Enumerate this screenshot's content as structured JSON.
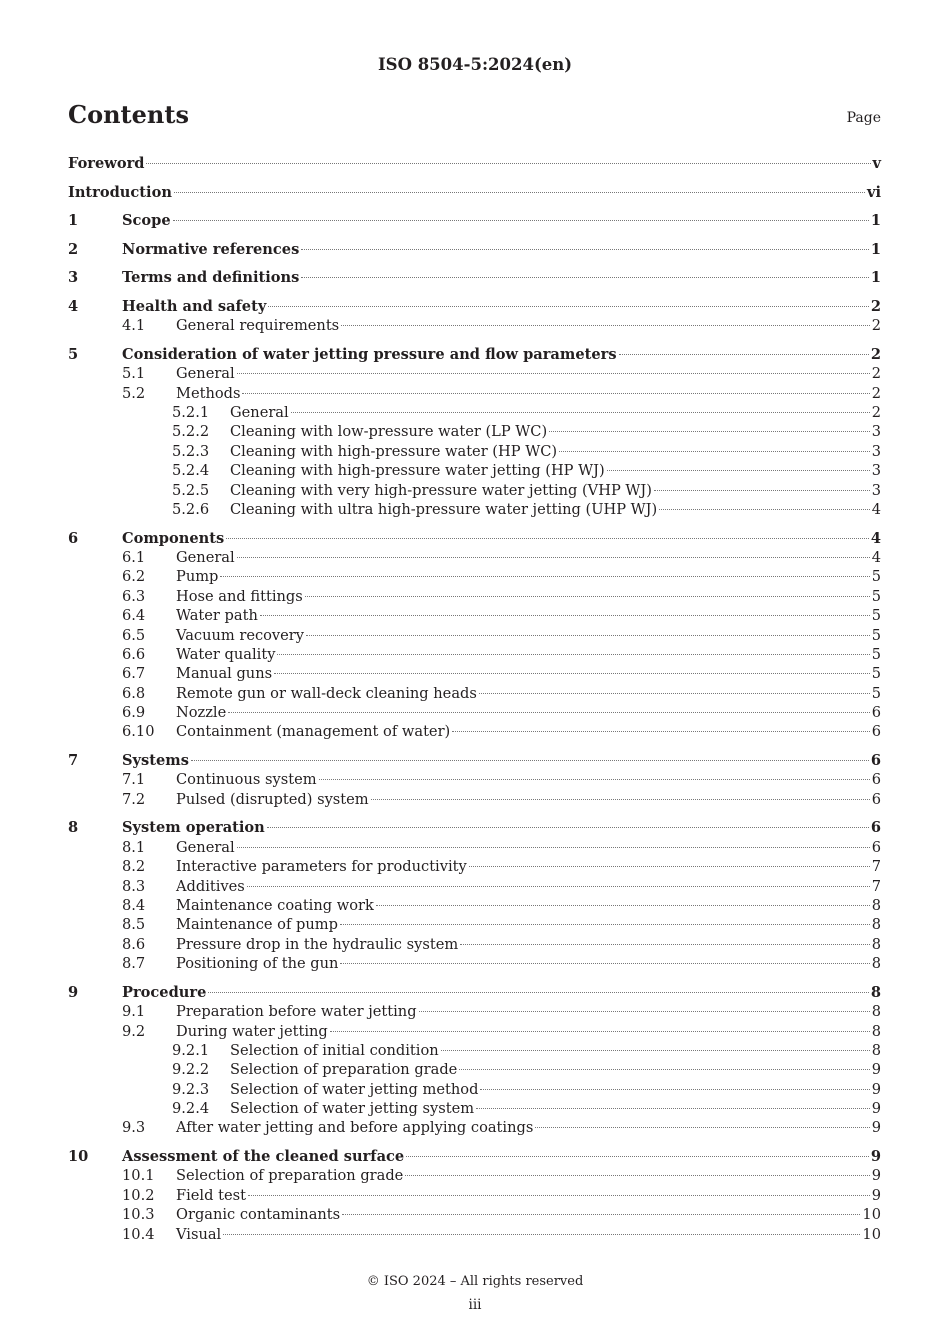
{
  "header": {
    "doc_id": "ISO 8504-5:2024(en)"
  },
  "contents": {
    "title": "Contents",
    "page_label": "Page"
  },
  "entries": [
    {
      "level": 0,
      "num": "",
      "title": "Foreword",
      "page": "v"
    },
    {
      "level": 0,
      "num": "",
      "title": "Introduction",
      "page": "vi"
    },
    {
      "level": 1,
      "num": "1",
      "title": "Scope",
      "page": "1"
    },
    {
      "level": 1,
      "num": "2",
      "title": "Normative references",
      "page": "1"
    },
    {
      "level": 1,
      "num": "3",
      "title": "Terms and definitions",
      "page": "1"
    },
    {
      "level": 1,
      "num": "4",
      "title": "Health and safety",
      "page": "2"
    },
    {
      "level": 2,
      "num": "4.1",
      "title": "General requirements",
      "page": "2"
    },
    {
      "level": 1,
      "num": "5",
      "title": "Consideration of water jetting pressure and flow parameters",
      "page": "2"
    },
    {
      "level": 2,
      "num": "5.1",
      "title": "General",
      "page": "2"
    },
    {
      "level": 2,
      "num": "5.2",
      "title": "Methods",
      "page": "2"
    },
    {
      "level": 3,
      "num": "5.2.1",
      "title": "General",
      "page": "2"
    },
    {
      "level": 3,
      "num": "5.2.2",
      "title": "Cleaning with low-pressure water (LP WC)",
      "page": "3"
    },
    {
      "level": 3,
      "num": "5.2.3",
      "title": "Cleaning with high-pressure water (HP WC)",
      "page": "3"
    },
    {
      "level": 3,
      "num": "5.2.4",
      "title": "Cleaning with high-pressure water jetting (HP WJ)",
      "page": "3"
    },
    {
      "level": 3,
      "num": "5.2.5",
      "title": "Cleaning with very high-pressure water jetting (VHP WJ)",
      "page": "3"
    },
    {
      "level": 3,
      "num": "5.2.6",
      "title": "Cleaning with ultra high-pressure water jetting (UHP WJ)",
      "page": "4"
    },
    {
      "level": 1,
      "num": "6",
      "title": "Components",
      "page": "4"
    },
    {
      "level": 2,
      "num": "6.1",
      "title": "General",
      "page": "4"
    },
    {
      "level": 2,
      "num": "6.2",
      "title": "Pump",
      "page": "5"
    },
    {
      "level": 2,
      "num": "6.3",
      "title": "Hose and fittings",
      "page": "5"
    },
    {
      "level": 2,
      "num": "6.4",
      "title": "Water path",
      "page": "5"
    },
    {
      "level": 2,
      "num": "6.5",
      "title": "Vacuum recovery",
      "page": "5"
    },
    {
      "level": 2,
      "num": "6.6",
      "title": "Water quality",
      "page": "5"
    },
    {
      "level": 2,
      "num": "6.7",
      "title": "Manual guns",
      "page": "5"
    },
    {
      "level": 2,
      "num": "6.8",
      "title": "Remote gun or wall-deck cleaning heads",
      "page": "5"
    },
    {
      "level": 2,
      "num": "6.9",
      "title": "Nozzle",
      "page": "6"
    },
    {
      "level": 2,
      "num": "6.10",
      "title": "Containment (management of water)",
      "page": "6"
    },
    {
      "level": 1,
      "num": "7",
      "title": "Systems",
      "page": "6"
    },
    {
      "level": 2,
      "num": "7.1",
      "title": "Continuous system",
      "page": "6"
    },
    {
      "level": 2,
      "num": "7.2",
      "title": "Pulsed (disrupted) system",
      "page": "6"
    },
    {
      "level": 1,
      "num": "8",
      "title": "System operation",
      "page": "6"
    },
    {
      "level": 2,
      "num": "8.1",
      "title": "General",
      "page": "6"
    },
    {
      "level": 2,
      "num": "8.2",
      "title": "Interactive parameters for productivity",
      "page": "7"
    },
    {
      "level": 2,
      "num": "8.3",
      "title": "Additives",
      "page": "7"
    },
    {
      "level": 2,
      "num": "8.4",
      "title": "Maintenance coating work",
      "page": "8"
    },
    {
      "level": 2,
      "num": "8.5",
      "title": "Maintenance of pump",
      "page": "8"
    },
    {
      "level": 2,
      "num": "8.6",
      "title": "Pressure drop in the hydraulic system",
      "page": "8"
    },
    {
      "level": 2,
      "num": "8.7",
      "title": "Positioning of the gun",
      "page": "8"
    },
    {
      "level": 1,
      "num": "9",
      "title": "Procedure",
      "page": "8"
    },
    {
      "level": 2,
      "num": "9.1",
      "title": "Preparation before water jetting",
      "page": "8"
    },
    {
      "level": 2,
      "num": "9.2",
      "title": "During water jetting",
      "page": "8"
    },
    {
      "level": 3,
      "num": "9.2.1",
      "title": "Selection of initial condition",
      "page": "8"
    },
    {
      "level": 3,
      "num": "9.2.2",
      "title": "Selection of preparation grade",
      "page": "9"
    },
    {
      "level": 3,
      "num": "9.2.3",
      "title": "Selection of water jetting method",
      "page": "9"
    },
    {
      "level": 3,
      "num": "9.2.4",
      "title": "Selection of water jetting system",
      "page": "9"
    },
    {
      "level": 2,
      "num": "9.3",
      "title": "After water jetting and before applying coatings",
      "page": "9"
    },
    {
      "level": 1,
      "num": "10",
      "title": "Assessment of the cleaned surface",
      "page": "9"
    },
    {
      "level": 2,
      "num": "10.1",
      "title": "Selection of preparation grade",
      "page": "9"
    },
    {
      "level": 2,
      "num": "10.2",
      "title": "Field test",
      "page": "9"
    },
    {
      "level": 2,
      "num": "10.3",
      "title": "Organic contaminants",
      "page": "10"
    },
    {
      "level": 2,
      "num": "10.4",
      "title": "Visual",
      "page": "10"
    }
  ],
  "footer": {
    "copyright": "© ISO 2024 – All rights reserved",
    "page_number": "iii"
  }
}
